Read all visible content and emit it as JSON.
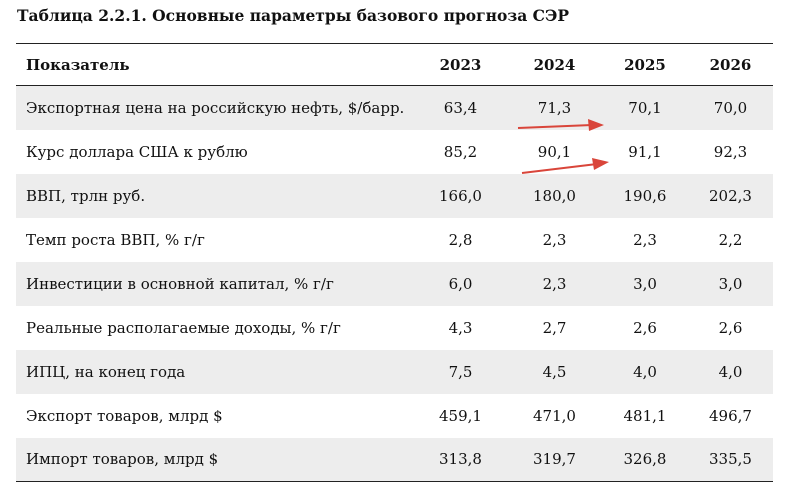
{
  "caption": "Таблица 2.2.1. Основные параметры базового прогноза СЭР",
  "header": {
    "indicator": "Показатель",
    "years": [
      "2023",
      "2024",
      "2025",
      "2026"
    ]
  },
  "rows": [
    {
      "label": "Экспортная цена на российскую нефть, $/барр.",
      "values": [
        "63,4",
        "71,3",
        "70,1",
        "70,0"
      ]
    },
    {
      "label": "Курс доллара США к рублю",
      "values": [
        "85,2",
        "90,1",
        "91,1",
        "92,3"
      ]
    },
    {
      "label": "ВВП, трлн руб.",
      "values": [
        "166,0",
        "180,0",
        "190,6",
        "202,3"
      ]
    },
    {
      "label": "Темп роста ВВП, % г/г",
      "values": [
        "2,8",
        "2,3",
        "2,3",
        "2,2"
      ]
    },
    {
      "label": "Инвестиции в основной капитал, % г/г",
      "values": [
        "6,0",
        "2,3",
        "3,0",
        "3,0"
      ]
    },
    {
      "label": "Реальные располагаемые доходы, % г/г",
      "values": [
        "4,3",
        "2,7",
        "2,6",
        "2,6"
      ]
    },
    {
      "label": "ИПЦ, на конец года",
      "values": [
        "7,5",
        "4,5",
        "4,0",
        "4,0"
      ]
    },
    {
      "label": "Экспорт товаров, млрд $",
      "values": [
        "459,1",
        "471,0",
        "481,1",
        "496,7"
      ]
    },
    {
      "label": "Импорт товаров, млрд $",
      "values": [
        "313,8",
        "319,7",
        "326,8",
        "335,5"
      ]
    }
  ],
  "annotation_color": "#d9453a"
}
